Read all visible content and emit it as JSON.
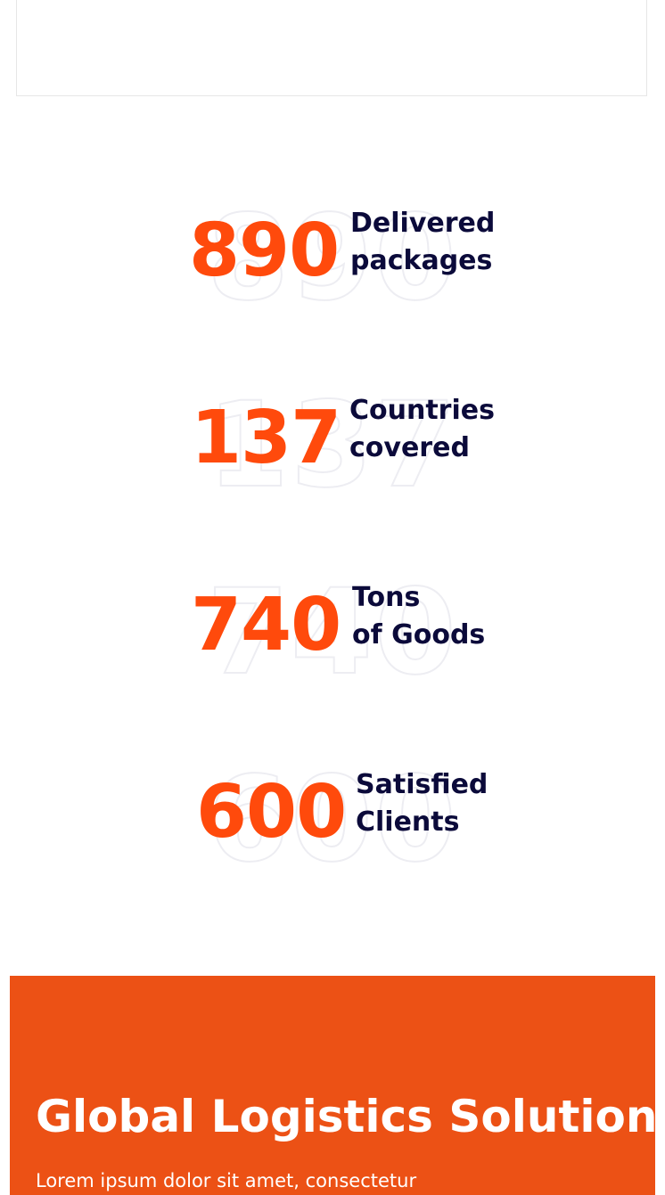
{
  "stats": [
    {
      "value": "890",
      "label_line1": "Delivered",
      "label_line2": "packages"
    },
    {
      "value": "137",
      "label_line1": "Countries",
      "label_line2": "covered"
    },
    {
      "value": "740",
      "label_line1": "Tons",
      "label_line2": "of Goods"
    },
    {
      "value": "600",
      "label_line1": "Satisfied",
      "label_line2": "Clients"
    }
  ],
  "banner": {
    "title": "Global Logistics Solutions",
    "text": "Lorem ipsum dolor sit amet, consectetur"
  },
  "colors": {
    "accent": "#ff4a0c",
    "banner_bg": "#ec5115",
    "heading_text": "#0b0a3a"
  }
}
